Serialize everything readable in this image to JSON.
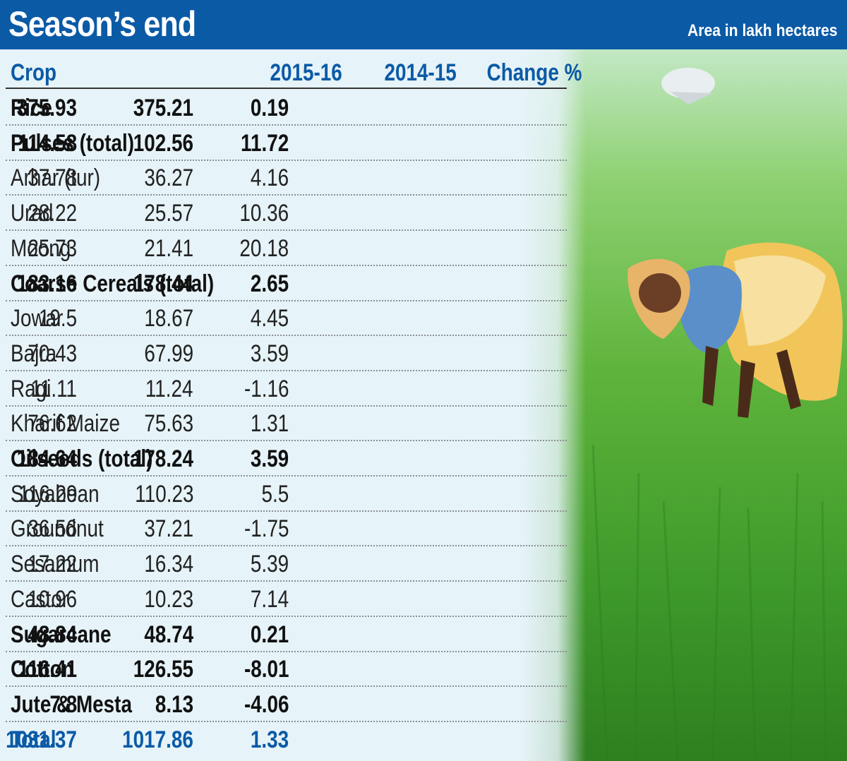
{
  "header": {
    "title": "Season’s end",
    "subtitle": "Area in lakh hectares"
  },
  "colors": {
    "header_bg": "#0b5aa6",
    "accent_text": "#0b5aa6",
    "table_bg": "#e6f3f8",
    "field_green": "#4fa832"
  },
  "chart_data": {
    "type": "table",
    "columns": [
      "Crop",
      "2015-16",
      "2014-15",
      "Change %"
    ],
    "rows": [
      {
        "crop": "Rice",
        "y2015_16": "375.93",
        "y2014_15": "375.21",
        "change": "0.19",
        "bold": true
      },
      {
        "crop": "Pulses (total)",
        "y2015_16": "114.58",
        "y2014_15": "102.56",
        "change": "11.72",
        "bold": true
      },
      {
        "crop": "Arhar (tur)",
        "y2015_16": "37.78",
        "y2014_15": "36.27",
        "change": "4.16",
        "bold": false
      },
      {
        "crop": "Urad",
        "y2015_16": "28.22",
        "y2014_15": "25.57",
        "change": "10.36",
        "bold": false
      },
      {
        "crop": "Moong",
        "y2015_16": "25.73",
        "y2014_15": "21.41",
        "change": "20.18",
        "bold": false
      },
      {
        "crop": "Coarse Cereals (total)",
        "y2015_16": "183.16",
        "y2014_15": "178.44",
        "change": "2.65",
        "bold": true
      },
      {
        "crop": "Jowar",
        "y2015_16": "19.5",
        "y2014_15": "18.67",
        "change": "4.45",
        "bold": false
      },
      {
        "crop": "Bajra",
        "y2015_16": "70.43",
        "y2014_15": "67.99",
        "change": "3.59",
        "bold": false
      },
      {
        "crop": "Ragi",
        "y2015_16": "11.11",
        "y2014_15": "11.24",
        "change": "-1.16",
        "bold": false
      },
      {
        "crop": "Kharif Maize",
        "y2015_16": "76.62",
        "y2014_15": "75.63",
        "change": "1.31",
        "bold": false
      },
      {
        "crop": "Oilseeds (total)",
        "y2015_16": "184.64",
        "y2014_15": "178.24",
        "change": "3.59",
        "bold": true
      },
      {
        "crop": "Soyabean",
        "y2015_16": "116.29",
        "y2014_15": "110.23",
        "change": "5.5",
        "bold": false
      },
      {
        "crop": "Groundnut",
        "y2015_16": "36.56",
        "y2014_15": "37.21",
        "change": "-1.75",
        "bold": false
      },
      {
        "crop": "Sesamum",
        "y2015_16": "17.22",
        "y2014_15": "16.34",
        "change": "5.39",
        "bold": false
      },
      {
        "crop": "Castor",
        "y2015_16": "10.96",
        "y2014_15": "10.23",
        "change": "7.14",
        "bold": false
      },
      {
        "crop": "Sugarcane",
        "y2015_16": "48.84",
        "y2014_15": "48.74",
        "change": "0.21",
        "bold": true
      },
      {
        "crop": "Cotton",
        "y2015_16": "116.41",
        "y2014_15": "126.55",
        "change": "-8.01",
        "bold": true
      },
      {
        "crop": "Jute & Mesta",
        "y2015_16": "7.8",
        "y2014_15": "8.13",
        "change": "-4.06",
        "bold": true
      },
      {
        "crop": "Total",
        "y2015_16": "1031.37",
        "y2014_15": "1017.86",
        "change": "1.33",
        "bold": true,
        "total": true
      }
    ]
  }
}
